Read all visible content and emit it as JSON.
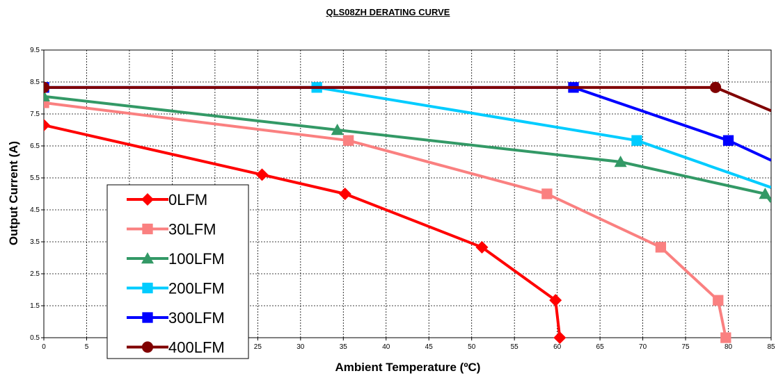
{
  "chart_data": {
    "type": "line",
    "title": "QLS08ZH DERATING CURVE",
    "xlabel": "Ambient Temperature (ºC)",
    "ylabel": "Output Current (A)",
    "xlim": [
      0,
      85
    ],
    "ylim": [
      0.5,
      9.5
    ],
    "x_ticks": [
      "0",
      "5",
      "10",
      "15",
      "20",
      "25",
      "30",
      "35",
      "40",
      "45",
      "50",
      "55",
      "60",
      "65",
      "70",
      "75",
      "80",
      "85"
    ],
    "y_ticks": [
      "0.5",
      "1.5",
      "2.5",
      "3.5",
      "4.5",
      "5.5",
      "6.5",
      "7.5",
      "8.5",
      "9.5"
    ],
    "grid": true,
    "legend_position": "lower-left",
    "series": [
      {
        "name": "0LFM",
        "color": "#ff0000",
        "marker": "diamond",
        "points": [
          [
            0,
            7.15
          ],
          [
            25.5,
            5.6
          ],
          [
            35.2,
            5.0
          ],
          [
            51.2,
            3.33
          ],
          [
            59.8,
            1.67
          ],
          [
            60.3,
            0.5
          ]
        ]
      },
      {
        "name": "30LFM",
        "color": "#fa8080",
        "marker": "square",
        "points": [
          [
            0,
            7.85
          ],
          [
            35.6,
            6.67
          ],
          [
            58.8,
            5.0
          ],
          [
            72.1,
            3.33
          ],
          [
            78.8,
            1.67
          ],
          [
            79.7,
            0.5
          ]
        ]
      },
      {
        "name": "100LFM",
        "color": "#339966",
        "marker": "triangle",
        "points": [
          [
            0,
            8.05
          ],
          [
            34.3,
            7.0
          ],
          [
            67.4,
            6.0
          ],
          [
            84.3,
            5.0
          ],
          [
            85,
            4.75
          ]
        ]
      },
      {
        "name": "200LFM",
        "color": "#00ccff",
        "marker": "square",
        "points": [
          [
            0,
            8.33
          ],
          [
            31.9,
            8.33
          ],
          [
            69.3,
            6.67
          ],
          [
            85,
            5.2
          ]
        ]
      },
      {
        "name": "300LFM",
        "color": "#0000ff",
        "marker": "square",
        "points": [
          [
            0,
            8.33
          ],
          [
            61.9,
            8.33
          ],
          [
            80,
            6.67
          ],
          [
            85,
            6.05
          ]
        ]
      },
      {
        "name": "400LFM",
        "color": "#800000",
        "marker": "circle",
        "points": [
          [
            0,
            8.33
          ],
          [
            78.5,
            8.33
          ],
          [
            85,
            7.6
          ]
        ]
      }
    ]
  }
}
